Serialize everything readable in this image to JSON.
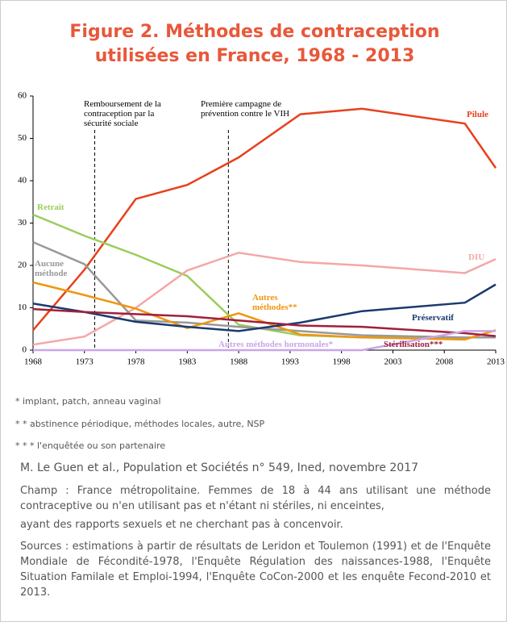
{
  "chart_data": {
    "type": "line",
    "title": "Figure 2. Méthodes de contraception utilisées en France, 1968 - 2013",
    "x": [
      1968,
      1973,
      1978,
      1983,
      1988,
      1994,
      2000,
      2010,
      2013
    ],
    "xlim": [
      1968,
      2013
    ],
    "xticks": [
      1968,
      1973,
      1978,
      1983,
      1988,
      1993,
      1998,
      2003,
      2008,
      2013
    ],
    "ylim": [
      0,
      60
    ],
    "yticks": [
      0,
      10,
      20,
      30,
      40,
      50,
      60
    ],
    "series": [
      {
        "name": "Pilule",
        "color": "#e8401c",
        "values": [
          4.7,
          19,
          35.7,
          39,
          45.5,
          55.7,
          57,
          53.5,
          43
        ]
      },
      {
        "name": "Retrait",
        "color": "#9acd5a",
        "values": [
          32,
          27,
          22.5,
          17.5,
          6,
          3.5,
          3,
          3,
          3
        ]
      },
      {
        "name": "DIU",
        "color": "#f4a7a7",
        "values": [
          1.3,
          3.2,
          10,
          18.8,
          23,
          20.8,
          20,
          18.2,
          21.5
        ]
      },
      {
        "name": "Aucune méthode",
        "color": "#999999",
        "values": [
          25.5,
          20.3,
          7,
          6.5,
          5.5,
          4.5,
          3.5,
          3,
          3
        ]
      },
      {
        "name": "Autres méthodes**",
        "color": "#f0960f",
        "values": [
          16,
          13,
          9.8,
          5.2,
          8.7,
          3.7,
          3,
          2.5,
          4.7
        ]
      },
      {
        "name": "Préservatif",
        "color": "#1a3a6e",
        "values": [
          11,
          9,
          6.7,
          5.5,
          4.5,
          6.5,
          9.2,
          11.2,
          15.5
        ]
      },
      {
        "name": "Stérilisation***",
        "color": "#a0203a",
        "values": [
          9.7,
          9,
          8.5,
          8,
          7,
          5.8,
          5.5,
          4,
          3.3
        ]
      },
      {
        "name": "Autres méthodes hormonales*",
        "color": "#c9a6e8",
        "values": [
          0,
          0,
          0,
          0,
          0,
          0,
          0,
          4.5,
          4.5
        ]
      }
    ],
    "annotations": [
      {
        "x": 1974,
        "label": "Remboursement de la contraception par la sécurité sociale"
      },
      {
        "x": 1987,
        "label": "Première campagne de prévention contre le VIH"
      }
    ]
  },
  "notes": [
    "* implant, patch, anneau vaginal",
    "* * abstinence périodique, méthodes locales, autre, NSP",
    "* * * l'enquêtée ou son partenaire"
  ],
  "source": "M. Le Guen et al., Population et Sociétés n° 549, Ined, novembre 2017",
  "champ": [
    "Champ : France métropolitaine. Femmes de 18 à 44 ans utilisant une méthode contraceptive ou n'en utilisant pas et n'étant ni stériles, ni enceintes,",
    "ayant des rapports sexuels et ne cherchant pas à concenvoir."
  ],
  "sources": "Sources : estimations à partir de résultats de Leridon et Toulemon (1991) et de l'Enquête Mondiale de Fécondité-1978, l'Enquête Régulation des naissances-1988, l'Enquête Situation Familale et Emploi-1994, l'Enquête CoCon-2000 et les enquête Fecond-2010 et 2013."
}
